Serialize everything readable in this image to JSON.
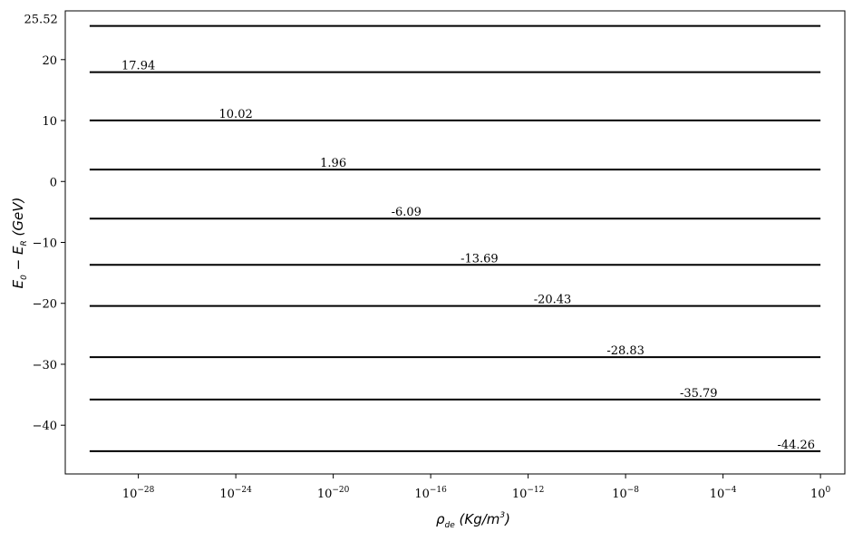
{
  "chart_data": {
    "type": "line",
    "xscale": "log",
    "xlim": [
      1e-31,
      10
    ],
    "ylim": [
      -48,
      28
    ],
    "x_range": [
      1e-30,
      1
    ],
    "xticks": [
      {
        "value": 1e-28,
        "base": "10",
        "exp": "−28"
      },
      {
        "value": 1e-24,
        "base": "10",
        "exp": "−24"
      },
      {
        "value": 1e-20,
        "base": "10",
        "exp": "−20"
      },
      {
        "value": 1e-16,
        "base": "10",
        "exp": "−16"
      },
      {
        "value": 1e-12,
        "base": "10",
        "exp": "−12"
      },
      {
        "value": 1e-08,
        "base": "10",
        "exp": "−8"
      },
      {
        "value": 0.0001,
        "base": "10",
        "exp": "−4"
      },
      {
        "value": 1,
        "base": "10",
        "exp": "0"
      }
    ],
    "yticks": [
      {
        "value": 20,
        "label": "20"
      },
      {
        "value": 10,
        "label": "10"
      },
      {
        "value": 0,
        "label": "0"
      },
      {
        "value": -10,
        "label": "−10"
      },
      {
        "value": -20,
        "label": "−20"
      },
      {
        "value": -30,
        "label": "−30"
      },
      {
        "value": -40,
        "label": "−40"
      }
    ],
    "series": [
      {
        "label": "25.52",
        "y": 25.52,
        "label_x": 1e-32
      },
      {
        "label": "17.94",
        "y": 17.94,
        "label_x": 1e-28
      },
      {
        "label": "10.02",
        "y": 10.02,
        "label_x": 1e-24
      },
      {
        "label": "1.96",
        "y": 1.96,
        "label_x": 1e-20
      },
      {
        "label": "-6.09",
        "y": -6.09,
        "label_x": 1e-17
      },
      {
        "label": "-13.69",
        "y": -13.69,
        "label_x": 1e-14
      },
      {
        "label": "-20.43",
        "y": -20.43,
        "label_x": 1e-11
      },
      {
        "label": "-28.83",
        "y": -28.83,
        "label_x": 1e-08
      },
      {
        "label": "-35.79",
        "y": -35.79,
        "label_x": 1e-05
      },
      {
        "label": "-44.26",
        "y": -44.26,
        "label_x": 0.1
      }
    ],
    "xlabel_parts": [
      "ρ",
      "de",
      " (Kg/m",
      "3",
      ")"
    ],
    "ylabel_parts": [
      "E",
      "0",
      " − E",
      "R",
      " (GeV)"
    ],
    "line_color": "#000000"
  }
}
